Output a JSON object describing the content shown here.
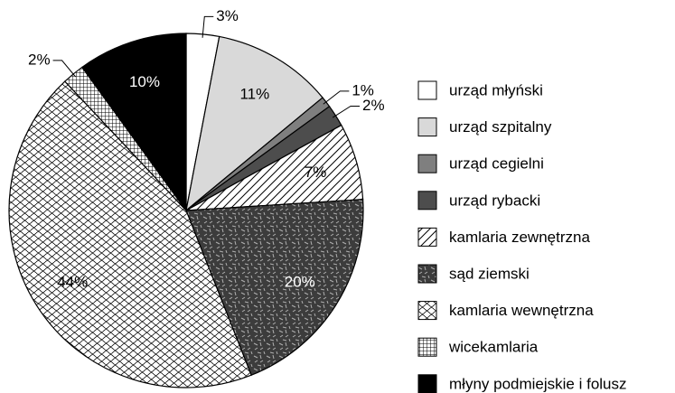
{
  "chart_data": {
    "type": "pie",
    "categories": [
      "urząd młyński",
      "urząd szpitalny",
      "urząd cegielni",
      "urząd rybacki",
      "kamlaria zewnętrzna",
      "sąd ziemski",
      "kamlaria wewnętrzna",
      "wicekamlaria",
      "młyny podmiejskie i folusz"
    ],
    "values": [
      3,
      11,
      1,
      2,
      7,
      20,
      44,
      2,
      10
    ],
    "value_labels": [
      "3%",
      "11%",
      "1%",
      "2%",
      "7%",
      "20%",
      "44%",
      "2%",
      "10%"
    ],
    "colors": [
      "#ffffff",
      "#d9d9d9",
      "#7f7f7f",
      "#4d4d4d",
      "#ffffff",
      "#3c3c3c",
      "#ffffff",
      "#ffffff",
      "#000000"
    ],
    "patterns": [
      "solid",
      "solid",
      "solid",
      "solid",
      "hatch",
      "dashes",
      "waves",
      "grid",
      "solid"
    ],
    "label_colors": [
      "#000000",
      "#000000",
      "#000000",
      "#000000",
      "#000000",
      "#ffffff",
      "#000000",
      "#000000",
      "#ffffff"
    ],
    "label_positions": [
      "outside",
      "inside",
      "outside",
      "outside",
      "inside",
      "inside",
      "inside",
      "outside",
      "inside"
    ],
    "legend": "right"
  }
}
